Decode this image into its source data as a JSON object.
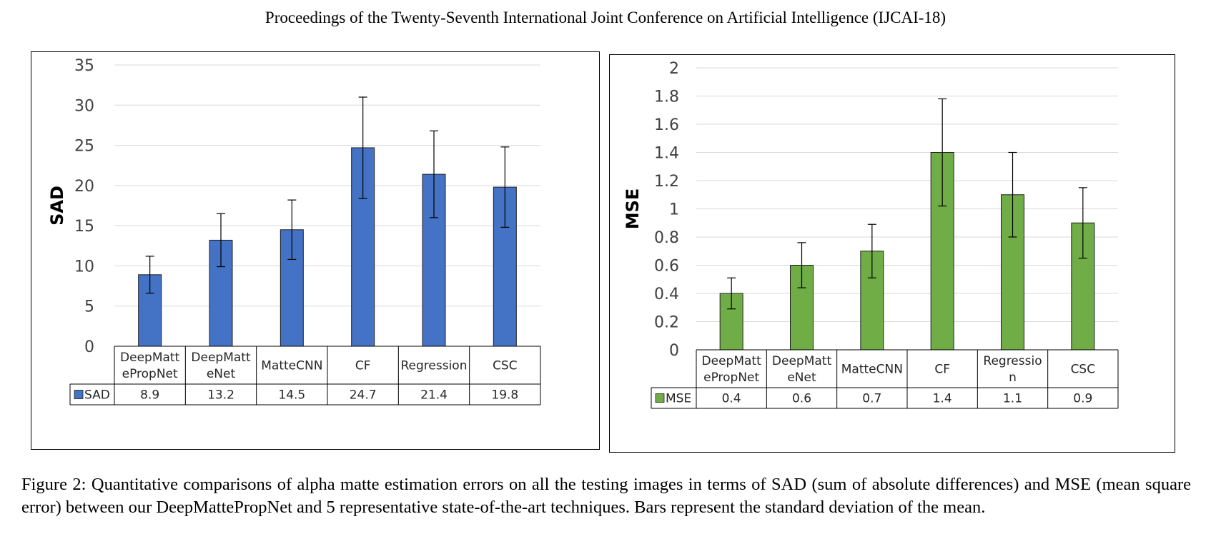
{
  "header": "Proceedings of the Twenty-Seventh International Joint Conference on Artificial Intelligence (IJCAI-18)",
  "caption": "Figure 2: Quantitative comparisons of alpha matte estimation errors on all the testing images in terms of SAD (sum of absolute differences) and MSE (mean square error) between our DeepMattePropNet and 5 representative state-of-the-art techniques. Bars represent the standard deviation of the mean.",
  "chart_data": [
    {
      "type": "bar",
      "ylabel": "SAD",
      "ylim": [
        0,
        35
      ],
      "yticks": [
        0,
        5,
        10,
        15,
        20,
        25,
        30,
        35
      ],
      "tick_labels": [
        "0",
        "5",
        "10",
        "15",
        "20",
        "25",
        "30",
        "35"
      ],
      "grid": true,
      "categories": [
        [
          "DeepMatt",
          "ePropNet"
        ],
        [
          "DeepMatt",
          "eNet"
        ],
        [
          "MatteCNN"
        ],
        [
          "CF"
        ],
        [
          "Regression"
        ],
        [
          "CSC"
        ]
      ],
      "series": [
        {
          "name": "SAD",
          "color": "#4472C4",
          "values": [
            8.9,
            13.2,
            14.5,
            24.7,
            21.4,
            19.8
          ],
          "value_labels": [
            "8.9",
            "13.2",
            "14.5",
            "24.7",
            "21.4",
            "19.8"
          ],
          "error": [
            2.3,
            3.3,
            3.7,
            6.3,
            5.4,
            5.0
          ]
        }
      ],
      "legend": "data table"
    },
    {
      "type": "bar",
      "ylabel": "MSE",
      "ylim": [
        0,
        2
      ],
      "yticks": [
        0,
        0.2,
        0.4,
        0.6,
        0.8,
        1,
        1.2,
        1.4,
        1.6,
        1.8,
        2
      ],
      "tick_labels": [
        "0",
        "0.2",
        "0.4",
        "0.6",
        "0.8",
        "1",
        "1.2",
        "1.4",
        "1.6",
        "1.8",
        "2"
      ],
      "grid": true,
      "categories": [
        [
          "DeepMatt",
          "ePropNet"
        ],
        [
          "DeepMatt",
          "eNet"
        ],
        [
          "MatteCNN"
        ],
        [
          "CF"
        ],
        [
          "Regressio",
          "n"
        ],
        [
          "CSC"
        ]
      ],
      "series": [
        {
          "name": "MSE",
          "color": "#70AD47",
          "values": [
            0.4,
            0.6,
            0.7,
            1.4,
            1.1,
            0.9
          ],
          "value_labels": [
            "0.4",
            "0.6",
            "0.7",
            "1.4",
            "1.1",
            "0.9"
          ],
          "error": [
            0.11,
            0.16,
            0.19,
            0.38,
            0.3,
            0.25
          ]
        }
      ],
      "legend": "data table"
    }
  ]
}
